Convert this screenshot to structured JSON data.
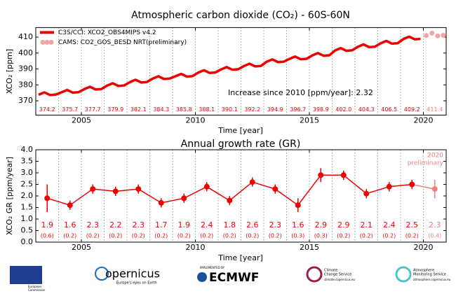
{
  "chart_data": [
    {
      "type": "line",
      "title": "Atmospheric carbon dioxide (CO₂) - 60S-60N",
      "y_label": "XCO₂ [ppm]",
      "x_label": "Time [year]",
      "annotation": "Increase since 2010 [ppm/year]: 2.32",
      "xlim": [
        2003,
        2021
      ],
      "xticks": [
        2005,
        2010,
        2015,
        2020
      ],
      "ylim": [
        361,
        416
      ],
      "yticks": [
        370,
        380,
        390,
        400,
        410
      ],
      "legend": "upper left",
      "series": [
        {
          "name": "C3S/CCI: XCO2_OBS4MIPS v4.2",
          "color": "#ee0000",
          "style": "line",
          "x": [
            2003.125,
            2003.375,
            2003.625,
            2003.875,
            2004.125,
            2004.375,
            2004.625,
            2004.875,
            2005.125,
            2005.375,
            2005.625,
            2005.875,
            2006.125,
            2006.375,
            2006.625,
            2006.875,
            2007.125,
            2007.375,
            2007.625,
            2007.875,
            2008.125,
            2008.375,
            2008.625,
            2008.875,
            2009.125,
            2009.375,
            2009.625,
            2009.875,
            2010.125,
            2010.375,
            2010.625,
            2010.875,
            2011.125,
            2011.375,
            2011.625,
            2011.875,
            2012.125,
            2012.375,
            2012.625,
            2012.875,
            2013.125,
            2013.375,
            2013.625,
            2013.875,
            2014.125,
            2014.375,
            2014.625,
            2014.875,
            2015.125,
            2015.375,
            2015.625,
            2015.875,
            2016.125,
            2016.375,
            2016.625,
            2016.875,
            2017.125,
            2017.375,
            2017.625,
            2017.875,
            2018.125,
            2018.375,
            2018.625,
            2018.875,
            2019.125,
            2019.375,
            2019.625,
            2019.875
          ],
          "values": [
            373.8,
            375.3,
            373.6,
            373.9,
            375.3,
            376.8,
            375.1,
            375.4,
            377.3,
            378.8,
            377.1,
            377.4,
            379.5,
            381.0,
            379.3,
            379.6,
            381.7,
            383.2,
            381.5,
            381.8,
            383.9,
            385.4,
            383.7,
            384.0,
            385.4,
            386.9,
            385.2,
            385.5,
            387.7,
            389.2,
            387.5,
            387.8,
            389.7,
            391.2,
            389.5,
            389.8,
            391.8,
            393.3,
            391.6,
            391.9,
            394.5,
            396.0,
            394.3,
            394.6,
            396.3,
            397.8,
            396.1,
            396.4,
            398.5,
            400.0,
            398.3,
            398.6,
            401.6,
            403.1,
            401.4,
            401.7,
            403.9,
            405.4,
            403.7,
            404.0,
            406.1,
            407.6,
            405.9,
            406.2,
            408.8,
            410.3,
            408.6,
            408.9
          ]
        },
        {
          "name": "CAMS: CO2_GOS_BESD NRT(preliminary)",
          "color": "#f4a3a3",
          "style": "dots",
          "x": [
            2020.125,
            2020.375,
            2020.625,
            2020.875
          ],
          "values": [
            411.0,
            412.5,
            410.8,
            411.1
          ]
        }
      ],
      "annual_means": {
        "x": [
          2003,
          2004,
          2005,
          2006,
          2007,
          2008,
          2009,
          2010,
          2011,
          2012,
          2013,
          2014,
          2015,
          2016,
          2017,
          2018,
          2019,
          2020
        ],
        "values": [
          374.2,
          375.7,
          377.7,
          379.9,
          382.1,
          384.3,
          385.8,
          388.1,
          390.1,
          392.2,
          394.9,
          396.7,
          398.9,
          402.0,
          404.3,
          406.5,
          409.2,
          411.4
        ],
        "value_labels": [
          "374.2",
          "375.7",
          "377.7",
          "379.9",
          "382.1",
          "384.3",
          "385.8",
          "388.1",
          "390.1",
          "392.2",
          "394.9",
          "396.7",
          "398.9",
          "402.0",
          "404.3",
          "406.5",
          "409.2",
          "411.4"
        ],
        "color": "#ee0000",
        "preliminary_color": "#f08080"
      }
    },
    {
      "type": "errorbar",
      "title": "Annual growth rate (GR)",
      "y_label": "XCO₂ GR [ppm/year]",
      "x_label": "Time [year]",
      "xlim": [
        2003,
        2021
      ],
      "xticks": [
        2005,
        2010,
        2015,
        2020
      ],
      "ylim": [
        0,
        4
      ],
      "yticks": [
        {
          "value": 0,
          "label": "0.0"
        },
        0.5,
        {
          "value": 1,
          "label": "1.0"
        },
        1.5,
        {
          "value": 2,
          "label": "2.0"
        },
        2.5,
        {
          "value": 3,
          "label": "3.0"
        },
        3.5,
        {
          "value": 4,
          "label": "4.0"
        }
      ],
      "color": "#ee0000",
      "preliminary_color": "#f08080",
      "annotation": [
        "2020",
        "preliminary"
      ],
      "x": [
        2003,
        2004,
        2005,
        2006,
        2007,
        2008,
        2009,
        2010,
        2011,
        2012,
        2013,
        2014,
        2015,
        2016,
        2017,
        2018,
        2019,
        2020
      ],
      "values": [
        1.9,
        1.6,
        2.3,
        2.2,
        2.3,
        1.7,
        1.9,
        2.4,
        1.8,
        2.6,
        2.3,
        1.6,
        2.9,
        2.9,
        2.1,
        2.4,
        2.5,
        2.3
      ],
      "errors": [
        0.6,
        0.2,
        0.2,
        0.2,
        0.2,
        0.2,
        0.2,
        0.2,
        0.2,
        0.2,
        0.2,
        0.3,
        0.3,
        0.2,
        0.2,
        0.2,
        0.2,
        0.4
      ],
      "error_labels": [
        "(0.6)",
        "(0.2)",
        "(0.2)",
        "(0.2)",
        "(0.2)",
        "(0.2)",
        "(0.2)",
        "(0.2)",
        "(0.2)",
        "(0.2)",
        "(0.2)",
        "(0.3)",
        "(0.3)",
        "(0.2)",
        "(0.2)",
        "(0.2)",
        "(0.2)",
        "(0.4)"
      ]
    }
  ],
  "logos": {
    "ec": [
      "European",
      "Commission"
    ],
    "copernicus": [
      "opernicus",
      "Europe's eyes on Earth"
    ],
    "ecmwf": [
      "IMPLEMENTED BY",
      "ECMWF"
    ],
    "c3s": [
      "Climate",
      "Change Service",
      "climate.copernicus.eu"
    ],
    "cams": [
      "Atmosphere",
      "Monitoring Service",
      "atmosphere.copernicus.eu"
    ]
  }
}
